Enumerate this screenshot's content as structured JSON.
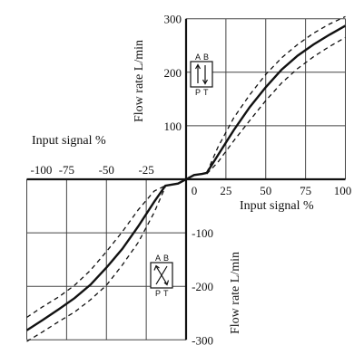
{
  "chart_data": {
    "type": "line",
    "x_ticks": [
      "-100",
      "-75",
      "-50",
      "-25",
      "0",
      "25",
      "50",
      "75",
      "100"
    ],
    "x_tick_values": [
      -100,
      -75,
      -50,
      -25,
      0,
      25,
      50,
      75,
      100
    ],
    "y_ticks": [
      "300",
      "200",
      "100",
      "-100",
      "-200",
      "-300"
    ],
    "y_tick_values": [
      300,
      200,
      100,
      -100,
      -200,
      -300
    ],
    "xlim": [
      -100,
      100
    ],
    "ylim": [
      -300,
      300
    ],
    "x_grid": [
      -100,
      -75,
      -50,
      -25,
      25,
      50,
      75,
      100
    ],
    "y_grid": [
      -300,
      -200,
      -100,
      100,
      200,
      300
    ],
    "grid": true,
    "labels": {
      "x_label_left": "Input signal   %",
      "x_label_right": "Input signal   %",
      "y_label_top": "Flow rate    L/min",
      "y_label_bottom": "Flow rate    L/min"
    },
    "valve_symbols": {
      "positive": {
        "a": "A",
        "b": "B",
        "p": "P",
        "t": "T"
      },
      "negative": {
        "a": "A",
        "b": "B",
        "p": "P",
        "t": "T"
      }
    },
    "series": [
      {
        "x": [
          -100,
          -90,
          -80,
          -70,
          -60,
          -50,
          -40,
          -30,
          -20,
          -13,
          -5,
          0,
          5,
          10,
          13,
          20,
          30,
          40,
          50,
          60,
          70,
          80,
          90,
          100
        ],
        "y": [
          -282,
          -263,
          -243,
          -222,
          -197,
          -165,
          -130,
          -88,
          -42,
          -12,
          -8,
          0,
          8,
          10,
          12,
          45,
          92,
          135,
          172,
          205,
          231,
          252,
          270,
          287
        ]
      },
      {
        "x": [
          -100,
          -90,
          -80,
          -70,
          -60,
          -50,
          -40,
          -30,
          -20,
          -13
        ],
        "y": [
          -258,
          -238,
          -220,
          -198,
          -170,
          -135,
          -98,
          -57,
          -22,
          -12
        ]
      },
      {
        "x": [
          -100,
          -90,
          -80,
          -70,
          -60,
          -50,
          -40,
          -30,
          -20,
          -13
        ],
        "y": [
          -303,
          -285,
          -266,
          -248,
          -225,
          -198,
          -160,
          -118,
          -62,
          -14
        ]
      },
      {
        "x": [
          13,
          20,
          30,
          40,
          50,
          60,
          70,
          80,
          90,
          100
        ],
        "y": [
          12,
          60,
          115,
          158,
          196,
          227,
          252,
          273,
          290,
          304
        ]
      },
      {
        "x": [
          13,
          20,
          30,
          40,
          50,
          60,
          70,
          80,
          90,
          100
        ],
        "y": [
          10,
          32,
          72,
          110,
          147,
          180,
          207,
          229,
          248,
          265
        ]
      }
    ]
  }
}
